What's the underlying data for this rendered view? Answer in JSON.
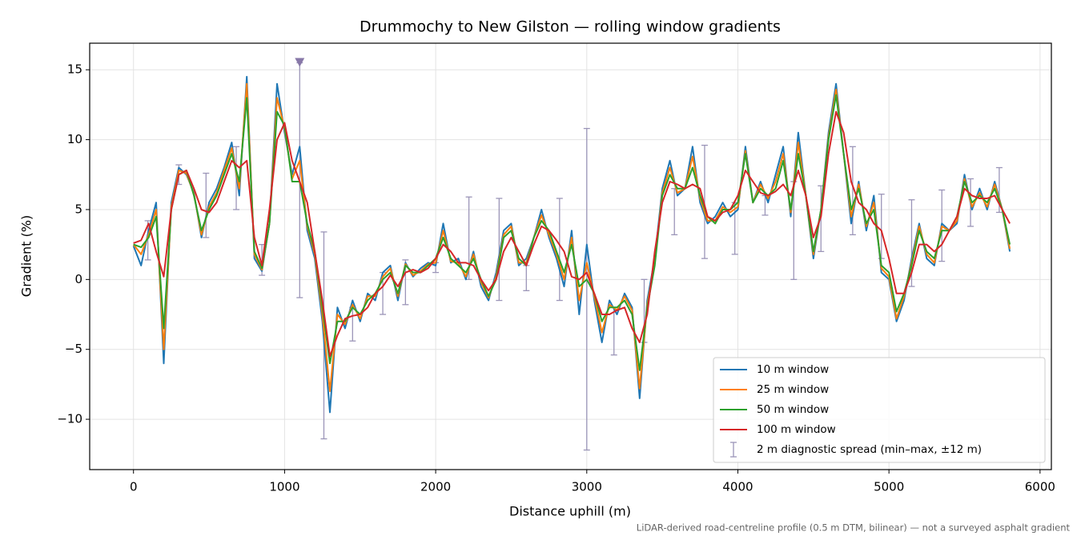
{
  "chart_data": {
    "type": "line",
    "title": "Drummochy to New Gilston — rolling window gradients",
    "x_label": "Distance uphill (m)",
    "y_label": "Gradient (%)",
    "footnote": "LiDAR-derived road-centreline profile (0.5 m DTM, bilinear) — not a surveyed asphalt gradient",
    "xlim": [
      -290,
      6075
    ],
    "ylim": [
      -13.6,
      16.9
    ],
    "xticks": [
      0,
      1000,
      2000,
      3000,
      4000,
      5000,
      6000
    ],
    "yticks": [
      {
        "value": -10,
        "label": "−10"
      },
      {
        "value": -5,
        "label": "−5"
      },
      0,
      5,
      10,
      15
    ],
    "grid": true,
    "legend": "lower right",
    "x": [
      0,
      50,
      100,
      150,
      200,
      250,
      300,
      350,
      400,
      450,
      500,
      550,
      600,
      650,
      700,
      750,
      800,
      850,
      900,
      950,
      1000,
      1050,
      1100,
      1150,
      1200,
      1250,
      1300,
      1350,
      1400,
      1450,
      1500,
      1550,
      1600,
      1650,
      1700,
      1750,
      1800,
      1850,
      1900,
      1950,
      2000,
      2050,
      2100,
      2150,
      2200,
      2250,
      2300,
      2350,
      2400,
      2450,
      2500,
      2550,
      2600,
      2650,
      2700,
      2750,
      2800,
      2850,
      2900,
      2950,
      3000,
      3050,
      3100,
      3150,
      3200,
      3250,
      3300,
      3350,
      3400,
      3450,
      3500,
      3550,
      3600,
      3650,
      3700,
      3750,
      3800,
      3850,
      3900,
      3950,
      4000,
      4050,
      4100,
      4150,
      4200,
      4250,
      4300,
      4350,
      4400,
      4450,
      4500,
      4550,
      4600,
      4650,
      4700,
      4750,
      4800,
      4850,
      4900,
      4950,
      5000,
      5050,
      5100,
      5150,
      5200,
      5250,
      5300,
      5350,
      5400,
      5450,
      5500,
      5550,
      5600,
      5650,
      5700,
      5750,
      5800
    ],
    "series": [
      {
        "name": "10 m window",
        "color": "#1f77b4",
        "values": [
          2.4,
          1.0,
          3.5,
          5.5,
          -6,
          5.5,
          8,
          7.5,
          6.2,
          3,
          5.5,
          6.5,
          8,
          9.8,
          6,
          14.5,
          1.5,
          0.6,
          4,
          14,
          10.5,
          7.5,
          9.5,
          3.5,
          1.5,
          -3,
          -9.5,
          -2,
          -3.5,
          -1.5,
          -3,
          -1,
          -1.5,
          0.5,
          1,
          -1.5,
          1.2,
          0.2,
          0.8,
          1.2,
          1,
          4,
          1.2,
          1.5,
          0,
          2,
          -0.5,
          -1.5,
          0.5,
          3.5,
          4,
          1,
          1.5,
          3,
          5,
          3,
          1.5,
          -0.5,
          3.5,
          -2.5,
          2.5,
          -1.5,
          -4.5,
          -1.5,
          -2.5,
          -1,
          -2,
          -8.5,
          -1.5,
          1.5,
          6.5,
          8.5,
          6,
          6.5,
          9.5,
          5.5,
          4,
          4.5,
          5.5,
          4.5,
          5,
          9.5,
          5.5,
          7,
          5.5,
          7.5,
          9.5,
          4.5,
          10.5,
          6,
          1.5,
          5,
          10.5,
          14,
          9,
          4,
          7,
          3.5,
          6,
          0.5,
          0,
          -3,
          -1.5,
          1.5,
          4,
          1.5,
          1,
          4,
          3.5,
          4,
          7.5,
          5,
          6.5,
          5,
          7,
          5,
          2
        ]
      },
      {
        "name": "25 m window",
        "color": "#ff7f0e",
        "values": [
          2.5,
          1.8,
          3.2,
          5,
          -5,
          5.2,
          7.8,
          7.6,
          6.1,
          3.2,
          5.2,
          6.2,
          7.8,
          9.4,
          6.5,
          14,
          1.8,
          0.7,
          4,
          13,
          10.8,
          7.2,
          8.5,
          3.8,
          1.8,
          -2.5,
          -8,
          -2.5,
          -3.2,
          -1.8,
          -2.8,
          -1.2,
          -1.2,
          0.2,
          0.8,
          -1.2,
          1.1,
          0.3,
          0.6,
          1.1,
          1.2,
          3.5,
          1.3,
          1.2,
          0.2,
          1.8,
          -0.2,
          -1.3,
          0.2,
          3.2,
          3.8,
          1.2,
          1.2,
          3,
          4.6,
          3.2,
          1.8,
          0,
          3,
          -1.5,
          1.2,
          -1.2,
          -3.8,
          -1.8,
          -2.2,
          -1.2,
          -2.2,
          -7.8,
          -1.8,
          1.2,
          6.2,
          8,
          6.2,
          6.5,
          8.8,
          5.8,
          4.2,
          4.2,
          5.2,
          4.8,
          5.2,
          9.2,
          5.5,
          6.8,
          5.8,
          7,
          9,
          4.8,
          9.8,
          6,
          1.8,
          5,
          10.2,
          13.6,
          9,
          4.5,
          6.8,
          3.8,
          5.5,
          0.8,
          0.2,
          -2.8,
          -1.2,
          1.2,
          3.8,
          1.8,
          1.2,
          3.8,
          3.5,
          4.2,
          7.2,
          5.2,
          6.2,
          5.2,
          6.8,
          5,
          2.2
        ]
      },
      {
        "name": "50 m window",
        "color": "#2ca02c",
        "values": [
          2.5,
          2.3,
          3,
          4.5,
          -3.5,
          5,
          7.5,
          7.8,
          6,
          3.5,
          5,
          6,
          7.5,
          9,
          7,
          13,
          2,
          0.8,
          4,
          12,
          11,
          7,
          7,
          4,
          2,
          -2,
          -6,
          -3,
          -3,
          -2,
          -2.5,
          -1.5,
          -1,
          0,
          0.5,
          -1,
          1,
          0.5,
          0.5,
          1,
          1.5,
          3,
          1.5,
          1,
          0.5,
          1.5,
          0,
          -1.2,
          0,
          3,
          3.5,
          1.5,
          1,
          3,
          4.2,
          3.5,
          2,
          0.5,
          2.5,
          -0.5,
          0,
          -1,
          -3,
          -2,
          -2,
          -1.5,
          -2.5,
          -6.5,
          -2,
          1,
          6,
          7.5,
          6.5,
          6.5,
          8,
          6,
          4.5,
          4,
          5,
          5,
          5.5,
          9,
          5.5,
          6.5,
          6,
          6.5,
          8.5,
          5,
          9,
          6,
          2,
          5,
          10,
          13.2,
          9,
          5,
          6.5,
          4,
          5,
          1,
          0.5,
          -2.3,
          -1,
          1,
          3.5,
          2,
          1.5,
          3.5,
          3.5,
          4.5,
          7,
          5.5,
          6,
          5.5,
          6.5,
          5,
          2.5
        ]
      },
      {
        "name": "100 m window",
        "color": "#d62728",
        "values": [
          2.6,
          2.8,
          4,
          2,
          0.2,
          5,
          7.5,
          7.8,
          6.5,
          5,
          4.8,
          5.5,
          7,
          8.5,
          8,
          8.5,
          3,
          1,
          5,
          10,
          11.2,
          8.5,
          7,
          5.5,
          2,
          -1.5,
          -5.5,
          -4,
          -2.8,
          -2.6,
          -2.5,
          -2,
          -1,
          -0.5,
          0.3,
          -0.5,
          0.5,
          0.7,
          0.5,
          0.8,
          1.5,
          2.5,
          2,
          1.2,
          1.2,
          1,
          0,
          -0.8,
          0,
          2,
          3,
          2,
          1,
          2.5,
          3.8,
          3.5,
          2.8,
          2,
          0.2,
          0,
          0.5,
          -1,
          -2.5,
          -2.5,
          -2.2,
          -2,
          -3.5,
          -4.5,
          -2.5,
          2,
          5.5,
          7,
          6.8,
          6.5,
          6.8,
          6.5,
          4.5,
          4.2,
          4.8,
          5,
          6,
          7.8,
          7,
          6.2,
          6,
          6.3,
          6.8,
          6,
          7.8,
          6,
          3,
          4.5,
          9,
          12,
          10.5,
          7,
          5.5,
          5,
          4,
          3.5,
          1.5,
          -1,
          -1,
          0.5,
          2.5,
          2.5,
          2,
          2.5,
          3.5,
          4.5,
          6.5,
          6,
          5.8,
          5.8,
          6,
          5,
          4
        ]
      }
    ],
    "spread": {
      "name": "2 m diagnostic spread (min–max, ±12 m)",
      "color": "#9b95b8",
      "x": [
        95,
        300,
        480,
        680,
        850,
        1100,
        1260,
        1450,
        1650,
        1800,
        2000,
        2220,
        2420,
        2600,
        2820,
        3000,
        3180,
        3380,
        3580,
        3780,
        3980,
        4180,
        4370,
        4550,
        4760,
        4950,
        5150,
        5350,
        5540,
        5730
      ],
      "low": [
        1.4,
        6.8,
        3,
        5,
        0.3,
        -1.3,
        -11.4,
        -4.4,
        -2.5,
        -1.8,
        0.5,
        0,
        -1.5,
        -0.8,
        -1.5,
        -12.2,
        -5.4,
        -4.5,
        3.2,
        1.5,
        1.8,
        4.6,
        0,
        2,
        3.2,
        1.5,
        -0.5,
        1.3,
        3.8,
        4.8
      ],
      "high": [
        4.2,
        8.2,
        7.6,
        9.5,
        2.5,
        15.5,
        3.4,
        -2,
        0.5,
        1.4,
        1.2,
        5.9,
        5.8,
        1,
        5.8,
        10.8,
        -2,
        0,
        6.5,
        9.6,
        5.5,
        6,
        7,
        6.7,
        9.5,
        6.1,
        5.7,
        6.4,
        7.2,
        8
      ]
    },
    "peak_marker": {
      "x": 1100,
      "y": 15.5,
      "color": "#8878a8"
    }
  }
}
